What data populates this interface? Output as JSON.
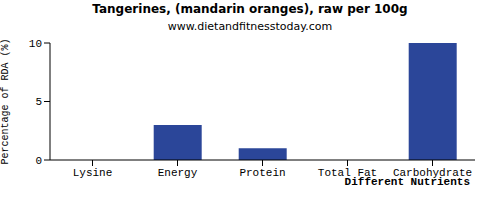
{
  "chart_data": {
    "type": "bar",
    "title": "Tangerines, (mandarin oranges), raw per 100g",
    "subtitle": "www.dietandfitnesstoday.com",
    "x_label": "Different Nutrients",
    "y_label": "Percentage of RDA (%)",
    "categories": [
      "Lysine",
      "Energy",
      "Protein",
      "Total Fat",
      "Carbohydrate"
    ],
    "values": [
      0,
      3,
      1,
      0,
      10
    ],
    "color": "#2b4699",
    "ylim": [
      0,
      10
    ],
    "yticks": [
      0,
      5,
      10
    ],
    "grid": false
  }
}
